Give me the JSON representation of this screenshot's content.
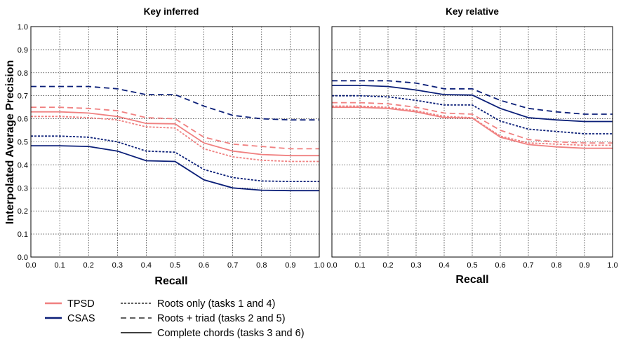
{
  "figure": {
    "ylabel": "Interpolated Average Precision"
  },
  "legend": {
    "systems": [
      {
        "label": "TPSD",
        "color": "#f08080"
      },
      {
        "label": "CSAS",
        "color": "#0b1f78"
      }
    ],
    "styles": [
      {
        "label": "Roots only (tasks 1 and 4)",
        "dash": "dotted-dash"
      },
      {
        "label": "Roots + triad (tasks 2 and 5)",
        "dash": "long-dash"
      },
      {
        "label": "Complete chords (tasks 3 and 6)",
        "dash": "solid"
      }
    ]
  },
  "chart_data": [
    {
      "type": "line",
      "title": "Key inferred",
      "xlabel": "Recall",
      "ylabel": "Interpolated Average Precision",
      "xlim": [
        0.0,
        1.0
      ],
      "ylim": [
        0.0,
        1.0
      ],
      "grid": true,
      "x": [
        0.0,
        0.1,
        0.2,
        0.3,
        0.4,
        0.5,
        0.6,
        0.7,
        0.8,
        0.9,
        1.0
      ],
      "x_tick_labels": [
        "0.0",
        "0.1",
        "0.2",
        "0.3",
        "0.4",
        "0.5",
        "0.6",
        "0.7",
        "0.8",
        "0.9",
        "1.0"
      ],
      "y_tick_labels": [
        "0.0",
        "0.1",
        "0.2",
        "0.3",
        "0.4",
        "0.5",
        "0.6",
        "0.7",
        "0.8",
        "0.9",
        "1.0"
      ],
      "series": [
        {
          "system": "TPSD",
          "style": "dotted-dash",
          "values": [
            0.61,
            0.61,
            0.605,
            0.595,
            0.565,
            0.56,
            0.47,
            0.435,
            0.42,
            0.415,
            0.415
          ]
        },
        {
          "system": "TPSD",
          "style": "long-dash",
          "values": [
            0.65,
            0.65,
            0.645,
            0.635,
            0.605,
            0.6,
            0.52,
            0.49,
            0.48,
            0.47,
            0.47
          ]
        },
        {
          "system": "TPSD",
          "style": "solid",
          "values": [
            0.63,
            0.63,
            0.625,
            0.61,
            0.58,
            0.578,
            0.495,
            0.46,
            0.445,
            0.44,
            0.44
          ]
        },
        {
          "system": "CSAS",
          "style": "dotted-dash",
          "values": [
            0.525,
            0.525,
            0.52,
            0.5,
            0.46,
            0.455,
            0.38,
            0.345,
            0.33,
            0.328,
            0.328
          ]
        },
        {
          "system": "CSAS",
          "style": "long-dash",
          "values": [
            0.74,
            0.74,
            0.74,
            0.73,
            0.705,
            0.705,
            0.655,
            0.615,
            0.6,
            0.595,
            0.595
          ]
        },
        {
          "system": "CSAS",
          "style": "solid",
          "values": [
            0.483,
            0.483,
            0.48,
            0.46,
            0.418,
            0.415,
            0.335,
            0.3,
            0.29,
            0.288,
            0.288
          ]
        }
      ]
    },
    {
      "type": "line",
      "title": "Key relative",
      "xlabel": "Recall",
      "ylabel": "",
      "xlim": [
        0.0,
        1.0
      ],
      "ylim": [
        0.0,
        1.0
      ],
      "grid": true,
      "x": [
        0.0,
        0.1,
        0.2,
        0.3,
        0.4,
        0.5,
        0.6,
        0.7,
        0.8,
        0.9,
        1.0
      ],
      "x_tick_labels": [
        "0.0",
        "0.1",
        "0.2",
        "0.3",
        "0.4",
        "0.5",
        "0.6",
        "0.7",
        "0.8",
        "0.9",
        "1.0"
      ],
      "y_tick_labels": [],
      "series": [
        {
          "system": "TPSD",
          "style": "dotted-dash",
          "values": [
            0.655,
            0.655,
            0.65,
            0.635,
            0.61,
            0.605,
            0.525,
            0.495,
            0.49,
            0.485,
            0.485
          ]
        },
        {
          "system": "TPSD",
          "style": "long-dash",
          "values": [
            0.67,
            0.67,
            0.665,
            0.65,
            0.625,
            0.62,
            0.55,
            0.51,
            0.5,
            0.495,
            0.495
          ]
        },
        {
          "system": "TPSD",
          "style": "solid",
          "values": [
            0.65,
            0.65,
            0.645,
            0.63,
            0.605,
            0.603,
            0.52,
            0.488,
            0.478,
            0.472,
            0.472
          ]
        },
        {
          "system": "CSAS",
          "style": "dotted-dash",
          "values": [
            0.7,
            0.7,
            0.695,
            0.68,
            0.66,
            0.66,
            0.59,
            0.555,
            0.545,
            0.535,
            0.535
          ]
        },
        {
          "system": "CSAS",
          "style": "long-dash",
          "values": [
            0.765,
            0.765,
            0.765,
            0.755,
            0.73,
            0.73,
            0.68,
            0.645,
            0.63,
            0.62,
            0.62
          ]
        },
        {
          "system": "CSAS",
          "style": "solid",
          "values": [
            0.745,
            0.745,
            0.74,
            0.725,
            0.705,
            0.703,
            0.645,
            0.605,
            0.595,
            0.588,
            0.588
          ]
        }
      ]
    }
  ]
}
